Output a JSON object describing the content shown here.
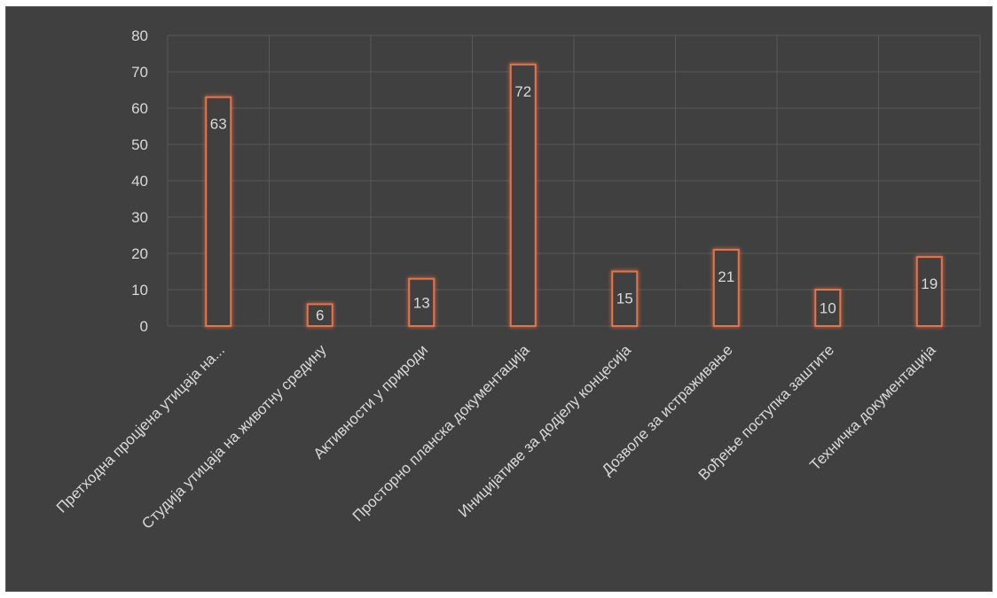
{
  "chart_data": {
    "type": "bar",
    "title": "",
    "xlabel": "",
    "ylabel": "",
    "categories": [
      "Претходна процјена утицаја на...",
      "Студија утицаја на животну средину",
      "Активности у природи",
      "Просторно планска документација",
      "Иницијативе за додјелу концесија",
      "Дозволе за истраживање",
      "Вођење поступка заштите",
      "Техничка документација"
    ],
    "values": [
      63,
      6,
      13,
      72,
      15,
      21,
      10,
      19
    ],
    "data_labels": [
      "63",
      "6",
      "13",
      "72",
      "15",
      "21",
      "10",
      "19"
    ],
    "ylim": [
      0,
      80
    ],
    "yticks": [
      "0",
      "10",
      "20",
      "30",
      "40",
      "50",
      "60",
      "70",
      "80"
    ],
    "grid": true,
    "legend": "none",
    "colors": {
      "background": "#404040",
      "bar_outline": "#e8734a",
      "gridline": "#595959",
      "text": "#d9d9d9"
    }
  }
}
